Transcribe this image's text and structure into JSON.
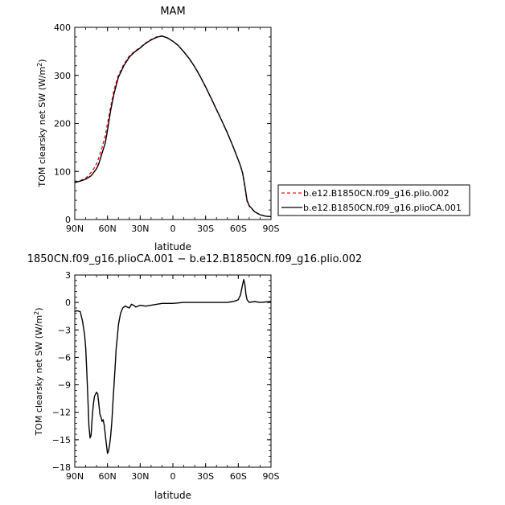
{
  "chart_data": [
    {
      "type": "line",
      "title": "MAM",
      "xlabel": "latitude",
      "ylabel": "TOM clearsky net SW (W/m²)",
      "ylabel_main": "TOM clearsky net SW (W/m",
      "ylabel_sup": "2",
      "ylabel_tail": ")",
      "xlim": [
        90,
        -90
      ],
      "ylim": [
        0,
        400
      ],
      "x_tick_values": [
        90,
        60,
        30,
        0,
        -30,
        -60,
        -90
      ],
      "x_tick_labels": [
        "90N",
        "60N",
        "30N",
        "0",
        "30S",
        "60S",
        "90S"
      ],
      "y_tick_values": [
        0,
        100,
        200,
        300,
        400
      ],
      "y_tick_labels": [
        "0",
        "100",
        "200",
        "300",
        "400"
      ],
      "grid": false,
      "legend_position": "right",
      "series": [
        {
          "name": "b.e12.B1850CN.f09_g16.plio.002",
          "color": "#e8141c",
          "dash": "dashed",
          "x": [
            90,
            85,
            80,
            75,
            72,
            70,
            68,
            65,
            62,
            60,
            57,
            54,
            50,
            45,
            40,
            35,
            30,
            26,
            22,
            18,
            14,
            10,
            5,
            0,
            -5,
            -10,
            -15,
            -20,
            -25,
            -30,
            -35,
            -40,
            -45,
            -50,
            -55,
            -60,
            -62,
            -64,
            -66,
            -68,
            -70,
            -75,
            -80,
            -85,
            -90
          ],
          "y": [
            78,
            81,
            86,
            98,
            108,
            116,
            128,
            150,
            175,
            200,
            235,
            270,
            300,
            323,
            340,
            350,
            358,
            366,
            372,
            377,
            381,
            382,
            378,
            371,
            362,
            349,
            335,
            318,
            298,
            276,
            253,
            229,
            205,
            180,
            153,
            124,
            112,
            96,
            68,
            38,
            28,
            16,
            10,
            7,
            6
          ]
        },
        {
          "name": "b.e12.B1850CN.f09_g16.plioCA.001",
          "color": "#000000",
          "dash": "solid",
          "x": [
            90,
            85,
            80,
            75,
            72,
            70,
            68,
            65,
            62,
            60,
            57,
            54,
            50,
            45,
            40,
            35,
            30,
            26,
            22,
            18,
            14,
            10,
            5,
            0,
            -5,
            -10,
            -15,
            -20,
            -25,
            -30,
            -35,
            -40,
            -45,
            -50,
            -55,
            -60,
            -62,
            -64,
            -66,
            -68,
            -70,
            -75,
            -80,
            -85,
            -90
          ],
          "y": [
            77,
            80,
            84,
            91,
            100,
            106,
            116,
            138,
            160,
            186,
            228,
            262,
            296,
            320,
            338,
            349,
            357,
            365,
            371,
            376,
            380,
            382,
            378,
            371,
            362,
            349,
            335,
            318,
            298,
            276,
            253,
            229,
            205,
            180,
            153,
            124,
            112,
            96,
            70,
            40,
            29,
            16,
            10,
            7,
            6
          ]
        }
      ]
    },
    {
      "type": "line",
      "title": "1850CN.f09_g16.plioCA.001 − b.e12.B1850CN.f09_g16.plio.002",
      "xlabel": "latitude",
      "ylabel": "TOM clearsky net SW (W/m²)",
      "ylabel_main": "TOM clearsky net SW (W/m",
      "ylabel_sup": "2",
      "ylabel_tail": ")",
      "xlim": [
        90,
        -90
      ],
      "ylim": [
        -18,
        3
      ],
      "x_tick_values": [
        90,
        60,
        30,
        0,
        -30,
        -60,
        -90
      ],
      "x_tick_labels": [
        "90N",
        "60N",
        "30N",
        "0",
        "30S",
        "60S",
        "90S"
      ],
      "y_tick_values": [
        3,
        0,
        -3,
        -6,
        -9,
        -12,
        -15,
        -18
      ],
      "y_tick_labels": [
        "3",
        "0",
        "−3",
        "−6",
        "−9",
        "−12",
        "−15",
        "−18"
      ],
      "grid": false,
      "series": [
        {
          "color": "#000000",
          "dash": "solid",
          "x": [
            90,
            88,
            85,
            83,
            81,
            80,
            79,
            78,
            77,
            76,
            75,
            74,
            73,
            72,
            71,
            70,
            69,
            68,
            67,
            66,
            65,
            64,
            63,
            62,
            61,
            60,
            59,
            58,
            57,
            56,
            55,
            54,
            53,
            52,
            51,
            50,
            49,
            48,
            46,
            44,
            42,
            40,
            38,
            36,
            34,
            30,
            25,
            20,
            10,
            0,
            -10,
            -20,
            -30,
            -40,
            -50,
            -55,
            -58,
            -60,
            -62,
            -63,
            -64,
            -65,
            -66,
            -67,
            -68,
            -70,
            -75,
            -80,
            -90
          ],
          "y": [
            -1.0,
            -0.9,
            -1.0,
            -2.0,
            -3.5,
            -5.0,
            -7.5,
            -10.5,
            -13.5,
            -14.8,
            -14.5,
            -12.5,
            -11.2,
            -10.3,
            -10.0,
            -9.8,
            -10.0,
            -11.0,
            -12.2,
            -12.5,
            -13.0,
            -12.8,
            -13.4,
            -14.5,
            -15.5,
            -16.5,
            -16.2,
            -15.5,
            -14.5,
            -13.0,
            -11.0,
            -9.0,
            -7.0,
            -5.0,
            -3.8,
            -2.5,
            -1.8,
            -1.2,
            -0.6,
            -0.4,
            -0.5,
            -0.6,
            -0.2,
            -0.3,
            -0.5,
            -0.3,
            -0.4,
            -0.3,
            -0.1,
            -0.1,
            0.0,
            0.0,
            0.0,
            0.0,
            0.0,
            0.1,
            0.2,
            0.3,
            0.8,
            1.4,
            2.0,
            2.5,
            2.0,
            0.9,
            0.3,
            0.0,
            0.1,
            0.0,
            0.1
          ]
        }
      ]
    }
  ]
}
